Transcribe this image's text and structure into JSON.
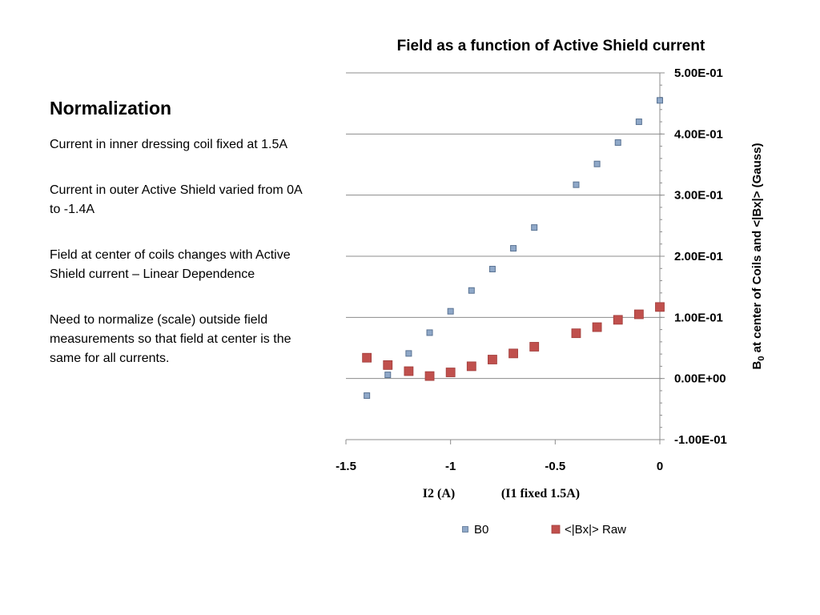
{
  "slide": {
    "heading": "Normalization",
    "paragraphs": [
      "Current in inner dressing coil fixed at 1.5A",
      "Current in outer Active Shield varied from 0A to -1.4A",
      "Field at center of coils changes with Active Shield current – Linear Dependence",
      "Need to normalize (scale) outside field measurements so that field at center is the same for all currents."
    ]
  },
  "chart_data": {
    "type": "scatter",
    "title": "Field as a function of Active Shield current",
    "xlabel_parts": [
      "I2 (A)",
      "(I1 fixed 1.5A)"
    ],
    "ylabel": {
      "prefix": "B",
      "subscript": "0",
      "suffix": " at center of Coils and <|Bx|> (Gauss)"
    },
    "xlim": [
      -1.5,
      0
    ],
    "ylim": [
      -0.1,
      0.5
    ],
    "xticks": [
      -1.5,
      -1,
      -0.5,
      0
    ],
    "xtick_labels": [
      "-1.5",
      "-1",
      "-0.5",
      "0"
    ],
    "yticks": [
      -0.1,
      0,
      0.1,
      0.2,
      0.3,
      0.4,
      0.5
    ],
    "ytick_labels": [
      "-1.00E-01",
      "0.00E+00",
      "1.00E-01",
      "2.00E-01",
      "3.00E-01",
      "4.00E-01",
      "5.00E-01"
    ],
    "y_axis_side": "right",
    "grid": "horizontal",
    "legend_position": "bottom",
    "series": [
      {
        "name": "B0",
        "color": "#8fa8c8",
        "stroke": "#5a7393",
        "marker": "small-square",
        "x": [
          -1.4,
          -1.3,
          -1.2,
          -1.1,
          -1.0,
          -0.9,
          -0.8,
          -0.7,
          -0.6,
          -0.4,
          -0.3,
          -0.2,
          -0.1,
          0.0
        ],
        "y": [
          -0.028,
          0.006,
          0.041,
          0.075,
          0.11,
          0.144,
          0.179,
          0.213,
          0.247,
          0.317,
          0.351,
          0.386,
          0.42,
          0.455
        ]
      },
      {
        "name": "<|Bx|> Raw",
        "color": "#c0504d",
        "stroke": "#a03c3a",
        "marker": "square",
        "x": [
          -1.4,
          -1.3,
          -1.2,
          -1.1,
          -1.0,
          -0.9,
          -0.8,
          -0.7,
          -0.6,
          -0.4,
          -0.3,
          -0.2,
          -0.1,
          0.0
        ],
        "y": [
          0.034,
          0.022,
          0.012,
          0.004,
          0.01,
          0.02,
          0.031,
          0.041,
          0.052,
          0.074,
          0.084,
          0.096,
          0.105,
          0.117
        ]
      }
    ]
  }
}
